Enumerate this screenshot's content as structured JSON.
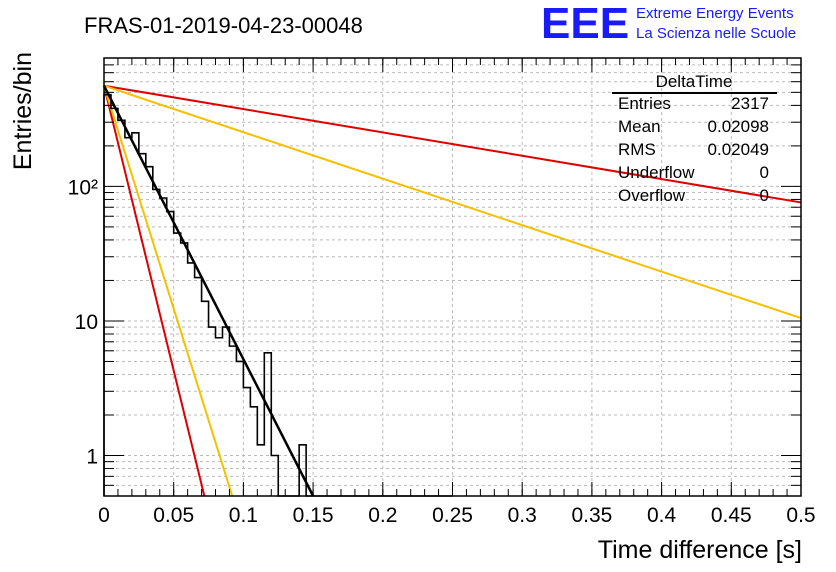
{
  "header": {
    "run_title": "FRAS-01-2019-04-23-00048",
    "logo_text": "EEE",
    "logo_line1": "Extreme Energy Events",
    "logo_line2": "La Scienza nelle Scuole"
  },
  "colors": {
    "histogram": "#000000",
    "fit": "#000000",
    "red_curve": "#dd0000",
    "yellow_curve": "#f5c000",
    "logo": "#1a1aff",
    "grid": "#bbbbbb"
  },
  "stats_box": {
    "title": "DeltaTime",
    "rows": [
      {
        "label": "Entries",
        "value": "2317"
      },
      {
        "label": "Mean",
        "value": "0.02098"
      },
      {
        "label": "RMS",
        "value": "0.02049"
      },
      {
        "label": "Underflow",
        "value": "0"
      },
      {
        "label": "Overflow",
        "value": "0"
      }
    ]
  },
  "chart_data": {
    "type": "histogram",
    "title": "FRAS-01-2019-04-23-00048",
    "xlabel": "Time difference [s]",
    "ylabel": "Entries/bin",
    "xlim": [
      0,
      0.5
    ],
    "ylim": [
      0.5,
      900
    ],
    "y_scale": "log",
    "grid": true,
    "x_ticks": [
      0,
      0.05,
      0.1,
      0.15,
      0.2,
      0.25,
      0.3,
      0.35,
      0.4,
      0.45,
      0.5
    ],
    "x_tick_labels": [
      "0",
      "0.05",
      "0.1",
      "0.15",
      "0.2",
      "0.25",
      "0.3",
      "0.35",
      "0.4",
      "0.45",
      "0.5"
    ],
    "y_ticks": [
      1,
      10,
      100
    ],
    "y_tick_labels": [
      "1",
      "10",
      "10²"
    ],
    "bin_width": 0.005,
    "bin_edges_start": 0,
    "histogram_counts": [
      480,
      380,
      310,
      230,
      250,
      175,
      140,
      95,
      82,
      65,
      45,
      38,
      27,
      21,
      14,
      9,
      7.5,
      9,
      6.5,
      5,
      3.2,
      2.3,
      1.2,
      5.8,
      1.0,
      0.5,
      0.5,
      0.5,
      1.2,
      0.5,
      0.5,
      0.5,
      0.5,
      0.5,
      0.5,
      0.5,
      0.5,
      0.5,
      0.5,
      0.5,
      0.5,
      0.5,
      0.5,
      0.5,
      0.5,
      0.5,
      0.5,
      0.5,
      0.5,
      0.5
    ],
    "fit_line": {
      "x": [
        0.0,
        0.15
      ],
      "y": [
        560,
        0.5
      ]
    },
    "reference_curves": [
      {
        "color": "red",
        "x": [
          0.0,
          0.5
        ],
        "y": [
          560,
          76
        ]
      },
      {
        "color": "red",
        "x": [
          0.0,
          0.072
        ],
        "y": [
          560,
          0.5
        ]
      },
      {
        "color": "yellow",
        "x": [
          0.0,
          0.5
        ],
        "y": [
          560,
          10.5
        ]
      },
      {
        "color": "yellow",
        "x": [
          0.0,
          0.092
        ],
        "y": [
          560,
          0.5
        ]
      }
    ]
  }
}
